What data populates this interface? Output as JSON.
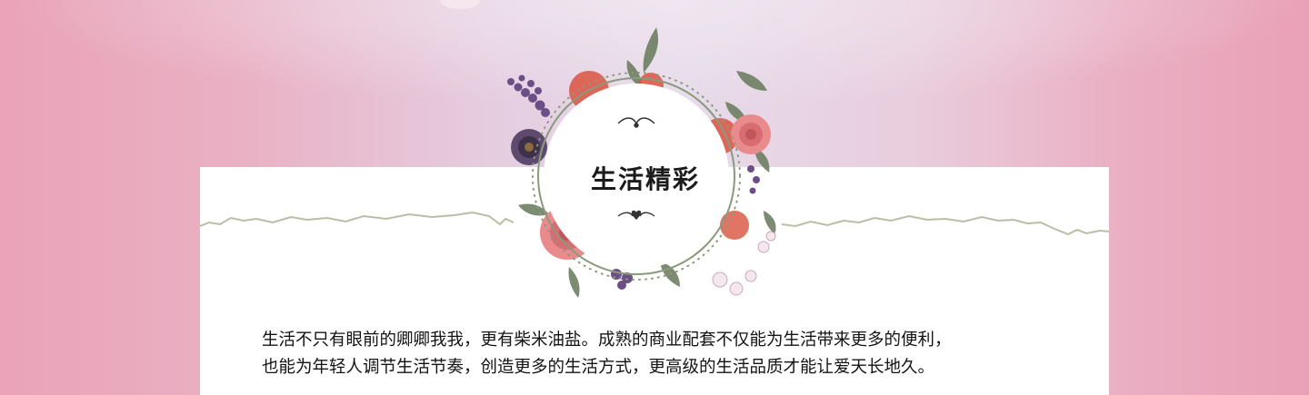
{
  "title": "生活精彩",
  "body_lines": [
    "生活不只有眼前的卿卿我我，更有柴米油盐。成熟的商业配套不仅能为生活带来更多的便利，",
    "也能为年轻人调节生活节奏，创造更多的生活方式，更高级的生活品质才能让爱天长地久。"
  ],
  "colors": {
    "background_pink": "#eaa3b8",
    "background_lavender": "#e6dbea",
    "card": "#ffffff",
    "divider_line": "#b8bfa6",
    "wreath_frame": "#8a9a7c",
    "rose": "#e98a8c",
    "coral_flower": "#d9533f",
    "purple_flower": "#6b4f86",
    "leaf": "#6e7f63"
  },
  "icons": [
    "floral-wreath-icon",
    "ornament-swirl-icon",
    "heart-ornament-icon"
  ]
}
